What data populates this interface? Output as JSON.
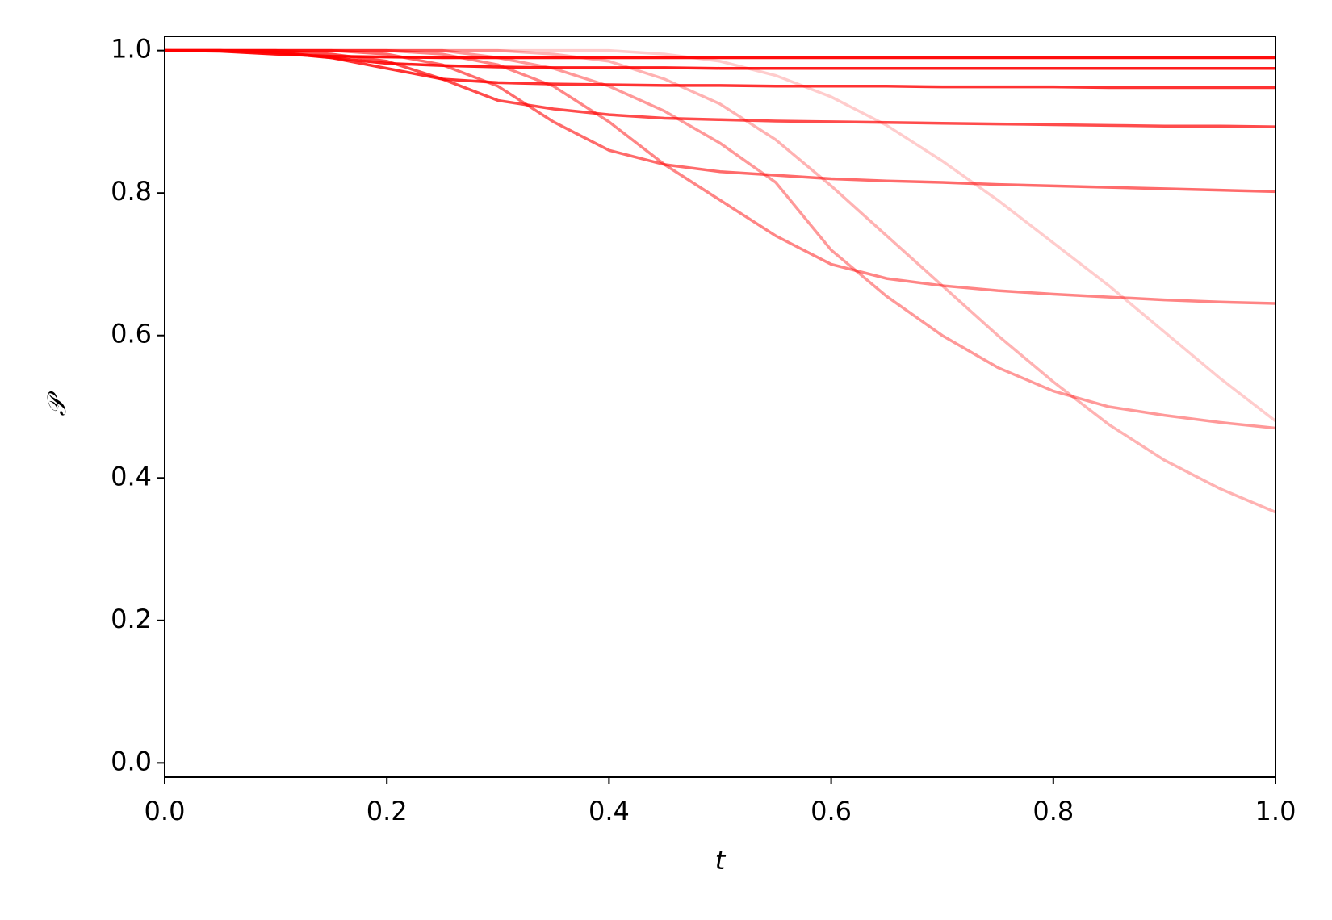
{
  "chart_data": {
    "type": "line",
    "xlabel": "t",
    "ylabel": "𝒫",
    "x": [
      0,
      0.05,
      0.1,
      0.15,
      0.2,
      0.25,
      0.3,
      0.35,
      0.4,
      0.45,
      0.5,
      0.55,
      0.6,
      0.65,
      0.7,
      0.75,
      0.8,
      0.85,
      0.9,
      0.95,
      1
    ],
    "xlim": [
      0,
      1
    ],
    "ylim": [
      -0.02,
      1.02
    ],
    "xticks": [
      {
        "value": 0,
        "label": "0.0"
      },
      0.2,
      0.4,
      0.6,
      0.8,
      {
        "value": 1,
        "label": "1.0"
      }
    ],
    "yticks": [
      {
        "value": 0,
        "label": "0.0"
      },
      0.2,
      0.4,
      0.6,
      0.8,
      {
        "value": 1,
        "label": "1.0"
      }
    ],
    "series": [
      {
        "color": "rgba(255,0,0,0.95)",
        "values": [
          1,
          0.999,
          0.995,
          0.992,
          0.991,
          0.99,
          0.99,
          0.99,
          0.99,
          0.99,
          0.99,
          0.99,
          0.99,
          0.99,
          0.99,
          0.99,
          0.99,
          0.99,
          0.99,
          0.99,
          0.99
        ]
      },
      {
        "color": "rgba(255,0,0,0.88)",
        "values": [
          1,
          1,
          0.997,
          0.99,
          0.982,
          0.979,
          0.977,
          0.976,
          0.976,
          0.976,
          0.975,
          0.975,
          0.975,
          0.975,
          0.975,
          0.975,
          0.975,
          0.975,
          0.975,
          0.975,
          0.975
        ]
      },
      {
        "color": "rgba(255,0,0,0.8)",
        "values": [
          1,
          1,
          0.998,
          0.99,
          0.975,
          0.96,
          0.955,
          0.953,
          0.952,
          0.951,
          0.951,
          0.95,
          0.95,
          0.95,
          0.949,
          0.949,
          0.949,
          0.948,
          0.948,
          0.948,
          0.948
        ]
      },
      {
        "color": "rgba(255,0,0,0.7)",
        "values": [
          1,
          1,
          1,
          0.995,
          0.985,
          0.96,
          0.93,
          0.918,
          0.91,
          0.905,
          0.903,
          0.901,
          0.9,
          0.899,
          0.898,
          0.897,
          0.896,
          0.895,
          0.894,
          0.894,
          0.893
        ]
      },
      {
        "color": "rgba(255,0,0,0.58)",
        "values": [
          1,
          1,
          1,
          1,
          0.995,
          0.98,
          0.95,
          0.9,
          0.86,
          0.84,
          0.83,
          0.825,
          0.82,
          0.817,
          0.815,
          0.812,
          0.81,
          0.808,
          0.806,
          0.804,
          0.802
        ]
      },
      {
        "color": "rgba(255,0,0,0.48)",
        "values": [
          1,
          1,
          1,
          1,
          1,
          0.995,
          0.98,
          0.95,
          0.9,
          0.84,
          0.79,
          0.74,
          0.7,
          0.68,
          0.67,
          0.663,
          0.658,
          0.654,
          0.65,
          0.647,
          0.645
        ]
      },
      {
        "color": "rgba(255,0,0,0.4)",
        "values": [
          1,
          1,
          1,
          1,
          1,
          1,
          0.99,
          0.975,
          0.95,
          0.915,
          0.87,
          0.815,
          0.72,
          0.655,
          0.6,
          0.555,
          0.522,
          0.5,
          0.488,
          0.478,
          0.47
        ]
      },
      {
        "color": "rgba(255,0,0,0.3)",
        "values": [
          1,
          1,
          1,
          1,
          1,
          1,
          1,
          0.995,
          0.985,
          0.96,
          0.925,
          0.875,
          0.81,
          0.74,
          0.67,
          0.6,
          0.535,
          0.475,
          0.425,
          0.385,
          0.352
        ]
      },
      {
        "color": "rgba(255,0,0,0.2)",
        "values": [
          1,
          1,
          1,
          1,
          1,
          1,
          1,
          1,
          1,
          0.995,
          0.985,
          0.965,
          0.935,
          0.895,
          0.845,
          0.79,
          0.73,
          0.67,
          0.605,
          0.54,
          0.48
        ]
      }
    ]
  }
}
